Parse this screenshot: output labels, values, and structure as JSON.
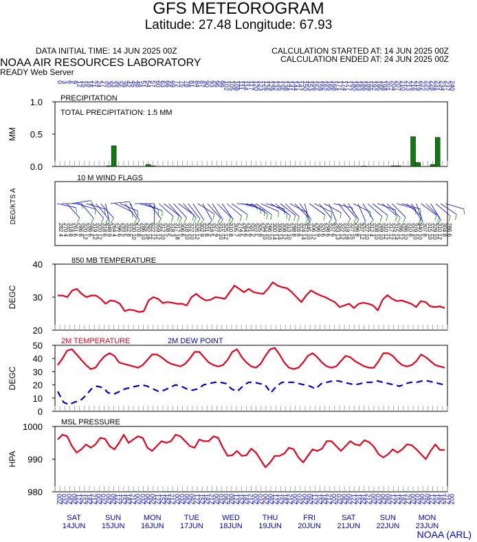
{
  "header": {
    "title": "GFS METEOROGRAM",
    "subtitle": "Latitude: 27.48 Longitude:  67.93",
    "initial_time": "DATA INITIAL TIME: 14 JUN 2025 00Z",
    "calc_started": "CALCULATION STARTED AT: 14 JUN 2025 00Z",
    "calc_ended": "CALCULATION ENDED AT: 24 JUN 2025 00Z",
    "lab": "NOAA AIR RESOURCES LABORATORY",
    "server": "READY Web Server",
    "footer": "NOAA (ARL)"
  },
  "colors": {
    "red": "#e8001c",
    "blue": "#0000cc",
    "green": "#0f7a0f",
    "wind_green": "#0a8a0a"
  },
  "chart_data": [
    {
      "type": "bar",
      "title": "PRECIPITATION",
      "annotation": "TOTAL PRECIPITATION:   1.5 MM",
      "ylabel": "MM",
      "ylim": [
        0,
        1.0
      ],
      "yticks": [
        "0.0",
        "0.5",
        "1.0"
      ],
      "x": [
        0,
        3,
        6,
        9,
        12,
        15,
        18,
        21,
        24,
        27,
        30,
        33,
        36,
        39,
        42,
        45,
        48,
        51,
        54,
        57,
        60,
        63,
        66,
        69,
        72,
        75,
        78,
        81,
        84,
        87,
        90,
        93,
        96,
        99,
        102,
        105,
        108,
        111,
        114,
        117,
        120,
        123,
        126,
        129,
        132,
        135,
        138,
        141,
        144,
        147,
        150,
        153,
        156,
        159,
        162,
        165,
        168,
        171,
        174,
        177,
        180,
        183,
        186,
        189,
        192,
        195,
        198,
        201,
        204,
        207,
        210,
        213,
        216,
        219,
        222,
        225,
        228,
        231,
        234,
        237,
        240
      ],
      "values": [
        0,
        0,
        0,
        0,
        0,
        0,
        0,
        0,
        0,
        0,
        0,
        0.01,
        0.32,
        0,
        0,
        0,
        0,
        0,
        0,
        0.03,
        0.01,
        0,
        0,
        0,
        0,
        0,
        0,
        0,
        0,
        0,
        0,
        0,
        0,
        0,
        0,
        0,
        0,
        0,
        0,
        0,
        0,
        0,
        0,
        0,
        0,
        0,
        0,
        0,
        0,
        0,
        0,
        0,
        0,
        0,
        0,
        0,
        0,
        0,
        0,
        0,
        0,
        0,
        0,
        0.005,
        0,
        0,
        0,
        0,
        0,
        0.01,
        0.01,
        0,
        0,
        0.46,
        0.06,
        0,
        0,
        0.03,
        0.45,
        0,
        0
      ]
    },
    {
      "type": "wind_flags",
      "title": "10 M  WIND FLAGS",
      "ylabel": "DEG/KTS  A",
      "directions": [
        282,
        270,
        318,
        261,
        286,
        320,
        286,
        319,
        320,
        318,
        348,
        264,
        296,
        293,
        322,
        330,
        270,
        286,
        292,
        322,
        359,
        312,
        308,
        318,
        317,
        306,
        318,
        322,
        326,
        302,
        331,
        318,
        327,
        315,
        325,
        310,
        305,
        274,
        284,
        291,
        302,
        305,
        294,
        286,
        300,
        309,
        308,
        313,
        298,
        316,
        324,
        345,
        306,
        296,
        320,
        298,
        337,
        283,
        322,
        318,
        327,
        296,
        337,
        327,
        312,
        308,
        289,
        310,
        317,
        315,
        286,
        286,
        310,
        329,
        340,
        307,
        315,
        329,
        310,
        304,
        286
      ],
      "speeds": [
        4,
        4,
        8,
        6,
        8,
        12,
        6,
        12,
        12,
        6,
        9,
        4,
        6,
        5,
        8,
        10,
        8,
        10,
        16,
        12,
        12,
        10,
        5,
        3,
        18,
        6,
        10,
        10,
        12,
        9,
        8,
        5,
        9,
        10,
        12,
        8,
        7,
        5,
        6,
        6,
        5,
        8,
        10,
        10,
        14,
        14,
        12,
        10,
        8,
        6,
        14,
        10,
        12,
        9,
        6,
        6,
        6,
        13,
        12,
        18,
        15,
        8,
        12,
        10,
        4,
        10,
        10,
        12,
        12,
        14,
        12,
        10,
        8,
        10,
        10,
        8,
        10,
        10,
        12,
        8,
        6
      ]
    },
    {
      "type": "line",
      "title": "850 MB  TEMPERATURE",
      "ylabel": "DEGC",
      "ylim": [
        20,
        40
      ],
      "yticks": [
        "20",
        "30",
        "40"
      ],
      "series": [
        {
          "values": [
            30.5,
            30.5,
            30.0,
            32.0,
            32.5,
            31.0,
            30.0,
            30.5,
            30.5,
            29.5,
            28.0,
            29.0,
            28.8,
            28.0,
            25.8,
            26.2,
            26.0,
            25.5,
            25.7,
            29.0,
            30.0,
            29.5,
            28.2,
            28.5,
            28.3,
            28.0,
            28.0,
            27.5,
            30.0,
            31.0,
            29.8,
            29.0,
            29.2,
            30.0,
            29.8,
            29.5,
            31.5,
            33.5,
            32.5,
            31.5,
            32.5,
            31.5,
            31.2,
            31.0,
            32.5,
            34.5,
            33.5,
            33.0,
            32.7,
            31.5,
            30.0,
            28.5,
            30.5,
            32.0,
            31.2,
            30.5,
            30.0,
            29.2,
            28.5,
            27.0,
            27.5,
            28.0,
            26.7,
            28.0,
            28.3,
            28.0,
            27.5,
            26.0,
            29.2,
            30.6,
            29.5,
            28.8,
            29.0,
            28.5,
            28.0,
            27.0,
            28.8,
            28.5,
            27.2,
            27.0,
            27.2,
            26.7
          ]
        }
      ]
    },
    {
      "type": "line",
      "title": "",
      "ylabel": "DEGC",
      "ylim": [
        0,
        50
      ],
      "yticks": [
        "0",
        "10",
        "20",
        "30",
        "40",
        "50"
      ],
      "series": [
        {
          "name": "2M TEMPERATURE",
          "values": [
            35,
            40,
            46,
            47,
            43,
            39,
            35,
            32,
            33,
            38,
            42,
            44,
            42,
            37,
            36,
            35,
            34,
            33,
            35,
            39,
            43,
            43,
            41,
            38,
            36,
            35,
            34,
            36,
            40,
            45,
            45,
            41,
            37,
            35,
            34,
            35,
            39,
            45,
            47,
            41,
            37,
            34,
            33,
            36,
            42,
            47,
            48,
            43,
            37,
            33,
            32,
            33,
            37,
            42,
            44,
            41,
            37,
            34,
            33,
            34,
            38,
            42,
            41,
            38,
            36,
            34,
            33,
            33,
            38,
            44,
            44,
            42,
            38,
            35,
            34,
            35,
            38,
            43,
            41,
            38,
            35,
            34,
            33
          ],
          "x": [
            0,
            3,
            6,
            9,
            12,
            15,
            18,
            21,
            24,
            27,
            30,
            33,
            36,
            39,
            42,
            45,
            48,
            51,
            54,
            57,
            60,
            63,
            66,
            69,
            72,
            75,
            78,
            81,
            84,
            87,
            90,
            93,
            96,
            99,
            102,
            105,
            108,
            111,
            114,
            117,
            120,
            123,
            126,
            129,
            132,
            135,
            138,
            141,
            144,
            147,
            150,
            153,
            156,
            159,
            162,
            165,
            168,
            171,
            174,
            177,
            180,
            183,
            186,
            189,
            192,
            195,
            198,
            201,
            204,
            207,
            210,
            213,
            216,
            219,
            222,
            225,
            228,
            231,
            234,
            237,
            240,
            240,
            240
          ]
        },
        {
          "name": "2M  DEW POINT",
          "values": [
            15,
            7,
            5,
            7,
            8,
            12,
            17,
            19,
            18,
            14,
            13,
            15,
            17,
            18,
            19,
            20,
            19,
            17,
            15,
            16,
            18,
            20,
            19,
            17,
            16,
            17,
            20,
            21,
            22,
            22,
            21,
            17,
            15,
            19,
            22,
            22,
            21,
            20,
            14,
            19,
            22,
            22,
            22,
            21,
            20,
            19,
            17,
            21,
            22,
            23,
            23,
            22,
            21,
            20,
            21,
            22,
            22,
            23,
            22,
            21,
            20,
            19,
            21,
            22,
            22,
            23,
            23,
            22,
            21,
            20
          ]
        }
      ]
    },
    {
      "type": "line",
      "title": "MSL PRESSURE",
      "ylabel": "HPA",
      "ylim": [
        980,
        1000
      ],
      "yticks": [
        "980",
        "990",
        "1000"
      ],
      "series": [
        {
          "values": [
            996,
            997.5,
            997,
            994,
            992,
            993,
            994.5,
            993.5,
            994.5,
            996.5,
            996.2,
            994,
            993,
            995,
            997.5,
            995,
            996,
            997,
            996.5,
            993.5,
            992.5,
            994,
            995.5,
            995,
            995.5,
            997.5,
            997,
            995.5,
            994,
            993.5,
            996,
            995.5,
            995.5,
            997,
            996.5,
            993.5,
            991,
            991.2,
            992.5,
            991,
            991.2,
            993.2,
            992,
            989.8,
            987.5,
            989,
            991,
            991,
            991.7,
            993.5,
            993,
            990.5,
            989,
            991,
            993,
            992.5,
            993.2,
            995.5,
            995.5,
            994,
            992.5,
            994,
            995.5,
            994.5,
            994.2,
            995.8,
            995.2,
            993.8,
            991.5,
            990.5,
            991.5,
            993,
            992,
            993,
            994.5,
            994.3,
            993,
            991.5,
            990,
            992.5,
            994.5,
            992.8,
            992.8
          ]
        }
      ]
    }
  ],
  "x_axis": {
    "hour_labels": [
      "00",
      "03",
      "06",
      "09",
      "12",
      "15",
      "18",
      "21"
    ],
    "top_forecast_hours": [
      "0",
      "3",
      "6",
      "9",
      "12",
      "15",
      "18",
      "21",
      "24",
      "27",
      "30",
      "33",
      "36",
      "39",
      "42",
      "45",
      "48",
      "51",
      "54",
      "57",
      "60",
      "63",
      "66",
      "69",
      "72",
      "75",
      "78",
      "81",
      "84",
      "87",
      "90",
      "93",
      "96",
      "99",
      "102",
      "105",
      "108",
      "111",
      "114",
      "117",
      "120",
      "123",
      "126",
      "129",
      "132",
      "135",
      "138",
      "141",
      "144",
      "147",
      "150",
      "153",
      "156",
      "159",
      "162",
      "165",
      "168",
      "171",
      "174",
      "177",
      "180",
      "183",
      "186",
      "189",
      "192",
      "195",
      "198",
      "201",
      "204",
      "207",
      "210",
      "213",
      "216",
      "219",
      "222",
      "225",
      "228",
      "231",
      "234",
      "237",
      "240"
    ],
    "days": [
      {
        "dow": "SAT",
        "date": "14JUN"
      },
      {
        "dow": "SUN",
        "date": "15JUN"
      },
      {
        "dow": "MON",
        "date": "16JUN"
      },
      {
        "dow": "TUE",
        "date": "17JUN"
      },
      {
        "dow": "WED",
        "date": "18JUN"
      },
      {
        "dow": "THU",
        "date": "19JUN"
      },
      {
        "dow": "FRI",
        "date": "20JUN"
      },
      {
        "dow": "SAT",
        "date": "21JUN"
      },
      {
        "dow": "SUN",
        "date": "22JUN"
      },
      {
        "dow": "MON",
        "date": "23JUN"
      }
    ]
  }
}
